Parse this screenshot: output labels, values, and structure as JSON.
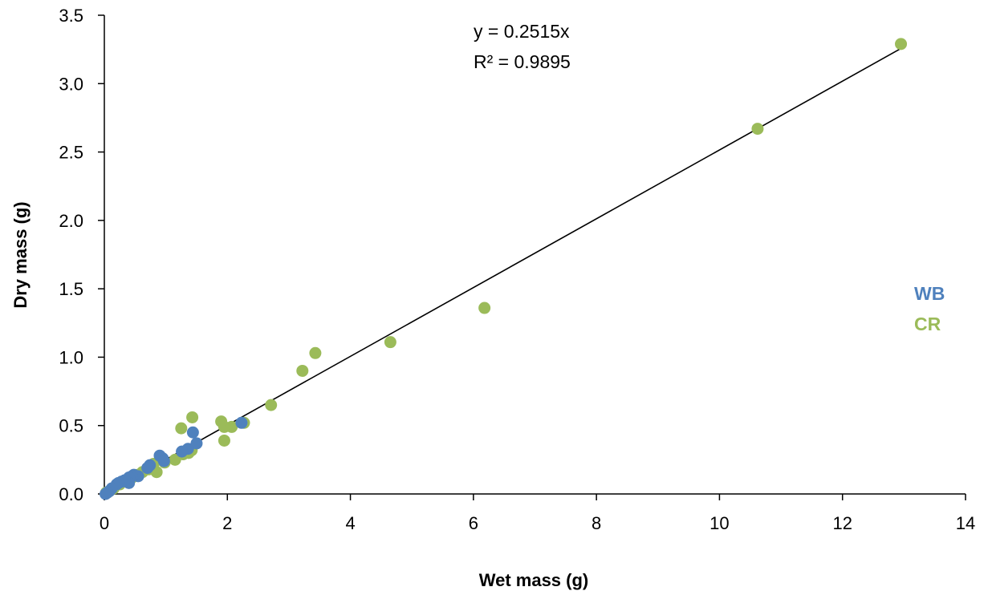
{
  "chart_data": {
    "type": "scatter",
    "xlabel": "Wet mass (g)",
    "ylabel": "Dry mass (g)",
    "xlim": [
      0,
      14
    ],
    "ylim": [
      0,
      3.5
    ],
    "xticks": [
      "0",
      "2",
      "4",
      "6",
      "8",
      "10",
      "12",
      "14"
    ],
    "yticks": [
      "0.0",
      "0.5",
      "1.0",
      "1.5",
      "2.0",
      "2.5",
      "3.0",
      "3.5"
    ],
    "grid": false,
    "legend_position": "right",
    "trendline": {
      "slope": 0.2515,
      "x_range": [
        0,
        12.95
      ],
      "equation_label": "y = 0.2515x",
      "r2_label": "R² = 0.9895"
    },
    "series": [
      {
        "name": "CR",
        "color": "#9BBB59",
        "points": [
          [
            12.95,
            3.29
          ],
          [
            10.62,
            2.67
          ],
          [
            6.18,
            1.36
          ],
          [
            4.65,
            1.11
          ],
          [
            3.43,
            1.03
          ],
          [
            3.22,
            0.9
          ],
          [
            2.71,
            0.65
          ],
          [
            2.27,
            0.52
          ],
          [
            2.07,
            0.49
          ],
          [
            1.95,
            0.49
          ],
          [
            1.9,
            0.53
          ],
          [
            1.95,
            0.39
          ],
          [
            1.43,
            0.56
          ],
          [
            1.25,
            0.48
          ],
          [
            1.42,
            0.32
          ],
          [
            1.37,
            0.3
          ],
          [
            1.28,
            0.29
          ],
          [
            1.15,
            0.25
          ],
          [
            0.98,
            0.23
          ],
          [
            0.85,
            0.16
          ],
          [
            0.8,
            0.22
          ],
          [
            0.72,
            0.18
          ],
          [
            0.62,
            0.16
          ],
          [
            0.55,
            0.14
          ],
          [
            0.45,
            0.12
          ],
          [
            0.35,
            0.09
          ],
          [
            0.25,
            0.07
          ],
          [
            0.15,
            0.04
          ],
          [
            0.08,
            0.02
          ],
          [
            0.03,
            0.01
          ]
        ]
      },
      {
        "name": "WB",
        "color": "#4F81BD",
        "points": [
          [
            2.23,
            0.52
          ],
          [
            1.5,
            0.37
          ],
          [
            1.44,
            0.45
          ],
          [
            1.36,
            0.33
          ],
          [
            1.26,
            0.31
          ],
          [
            0.95,
            0.26
          ],
          [
            0.9,
            0.28
          ],
          [
            0.97,
            0.24
          ],
          [
            0.74,
            0.21
          ],
          [
            0.7,
            0.19
          ],
          [
            0.55,
            0.13
          ],
          [
            0.48,
            0.14
          ],
          [
            0.45,
            0.13
          ],
          [
            0.4,
            0.12
          ],
          [
            0.4,
            0.08
          ],
          [
            0.33,
            0.1
          ],
          [
            0.28,
            0.09
          ],
          [
            0.23,
            0.08
          ],
          [
            0.2,
            0.07
          ],
          [
            0.12,
            0.04
          ],
          [
            0.08,
            0.02
          ],
          [
            0.05,
            0.01
          ],
          [
            0.02,
            0.0
          ]
        ]
      }
    ]
  }
}
